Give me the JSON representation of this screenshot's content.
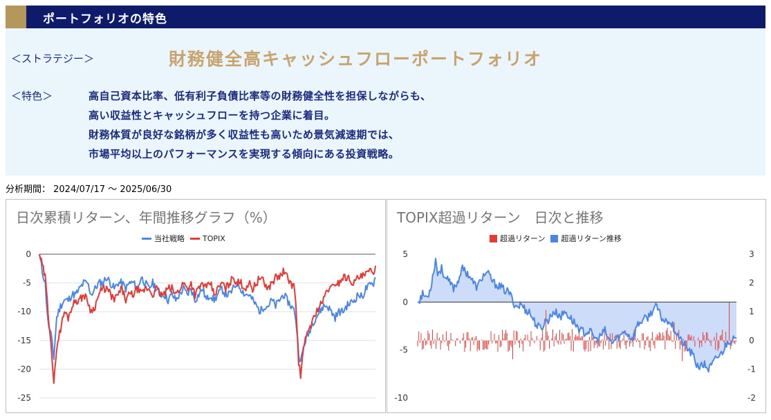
{
  "header": {
    "title": "ポートフォリオの特色",
    "strategy_label": "＜ストラテジー＞",
    "strategy_name": "財務健全高キャッシュフローポートフォリオ",
    "feature_label": "＜特色＞",
    "feature_lines": [
      "高自己資本比率、低有利子負債比率等の財務健全性を担保しながらも、",
      "高い収益性とキャッシュフローを持つ企業に着目。",
      "財務体質が良好な銘柄が多く収益性も高いため景気減速期では、",
      "市場平均以上のパフォーマンスを実現する傾向にある投資戦略。"
    ]
  },
  "period": "分析期間： 2024/07/17 ～ 2025/06/30",
  "colors": {
    "navy": "#0e1b6b",
    "gold": "#c8a46c",
    "blue": "#4a86e8",
    "red": "#e53935"
  },
  "chart_data": [
    {
      "type": "line",
      "title": "日次累積リターン、年間推移グラフ（%）",
      "ylim": [
        -25,
        0
      ],
      "yticks": [
        "0",
        "-5",
        "-10",
        "-15",
        "-20",
        "-25"
      ],
      "series": [
        {
          "name": "当社戦略",
          "color": "#4a86e8",
          "keypoints": [
            [
              0,
              0
            ],
            [
              3,
              -3
            ],
            [
              6,
              -5
            ],
            [
              9,
              -12
            ],
            [
              12,
              -14
            ],
            [
              15,
              -18
            ],
            [
              18,
              -11
            ],
            [
              22,
              -9
            ],
            [
              26,
              -8
            ],
            [
              30,
              -8
            ],
            [
              34,
              -7
            ],
            [
              38,
              -7
            ],
            [
              42,
              -6
            ],
            [
              46,
              -5
            ],
            [
              50,
              -5
            ],
            [
              54,
              -7
            ],
            [
              58,
              -6
            ],
            [
              62,
              -5
            ],
            [
              66,
              -5
            ],
            [
              70,
              -4
            ],
            [
              74,
              -5
            ],
            [
              78,
              -6
            ],
            [
              82,
              -5
            ],
            [
              86,
              -5
            ],
            [
              90,
              -6
            ],
            [
              94,
              -5
            ],
            [
              98,
              -5
            ],
            [
              102,
              -6
            ],
            [
              106,
              -4
            ],
            [
              110,
              -5
            ],
            [
              114,
              -6
            ],
            [
              118,
              -5
            ],
            [
              122,
              -6
            ],
            [
              126,
              -7
            ],
            [
              130,
              -7
            ],
            [
              134,
              -8
            ],
            [
              138,
              -7
            ],
            [
              142,
              -8
            ],
            [
              146,
              -7
            ],
            [
              150,
              -6
            ],
            [
              154,
              -7
            ],
            [
              158,
              -6
            ],
            [
              162,
              -8
            ],
            [
              166,
              -7
            ],
            [
              170,
              -6
            ],
            [
              174,
              -8
            ],
            [
              178,
              -7
            ],
            [
              182,
              -8
            ],
            [
              186,
              -7
            ],
            [
              190,
              -6
            ],
            [
              194,
              -7
            ],
            [
              198,
              -7
            ],
            [
              202,
              -6
            ],
            [
              206,
              -5
            ],
            [
              210,
              -6
            ],
            [
              214,
              -7
            ],
            [
              218,
              -7
            ],
            [
              222,
              -8
            ],
            [
              226,
              -9
            ],
            [
              230,
              -10
            ],
            [
              234,
              -9
            ],
            [
              238,
              -9
            ],
            [
              242,
              -8
            ],
            [
              246,
              -9
            ],
            [
              250,
              -8
            ],
            [
              254,
              -7
            ],
            [
              258,
              -8
            ],
            [
              262,
              -9
            ],
            [
              266,
              -10
            ],
            [
              268,
              -13
            ],
            [
              270,
              -17
            ],
            [
              272,
              -19
            ],
            [
              274,
              -17
            ],
            [
              277,
              -15
            ],
            [
              280,
              -14
            ],
            [
              284,
              -12
            ],
            [
              288,
              -11
            ],
            [
              292,
              -10
            ],
            [
              296,
              -9
            ],
            [
              300,
              -9
            ],
            [
              304,
              -10
            ],
            [
              308,
              -11
            ],
            [
              312,
              -10
            ],
            [
              316,
              -10
            ],
            [
              320,
              -9
            ],
            [
              324,
              -8.5
            ],
            [
              328,
              -8
            ],
            [
              332,
              -7
            ],
            [
              336,
              -7.5
            ],
            [
              340,
              -6
            ],
            [
              344,
              -5.5
            ],
            [
              348,
              -5
            ],
            [
              350,
              -4
            ]
          ]
        },
        {
          "name": "TOPIX",
          "color": "#e53935",
          "keypoints": [
            [
              0,
              0
            ],
            [
              3,
              -2
            ],
            [
              6,
              -4
            ],
            [
              9,
              -10
            ],
            [
              12,
              -15
            ],
            [
              15,
              -23
            ],
            [
              18,
              -16
            ],
            [
              22,
              -13
            ],
            [
              26,
              -10
            ],
            [
              30,
              -11
            ],
            [
              34,
              -9
            ],
            [
              38,
              -8
            ],
            [
              42,
              -8
            ],
            [
              46,
              -7
            ],
            [
              50,
              -8
            ],
            [
              54,
              -10
            ],
            [
              58,
              -9
            ],
            [
              62,
              -7
            ],
            [
              66,
              -6
            ],
            [
              70,
              -6
            ],
            [
              74,
              -7
            ],
            [
              78,
              -8
            ],
            [
              82,
              -7
            ],
            [
              86,
              -6
            ],
            [
              90,
              -8
            ],
            [
              94,
              -7
            ],
            [
              98,
              -7
            ],
            [
              102,
              -6
            ],
            [
              106,
              -7
            ],
            [
              110,
              -6
            ],
            [
              114,
              -6
            ],
            [
              118,
              -7
            ],
            [
              122,
              -6
            ],
            [
              126,
              -7
            ],
            [
              130,
              -7
            ],
            [
              134,
              -6
            ],
            [
              138,
              -6
            ],
            [
              142,
              -7
            ],
            [
              146,
              -6
            ],
            [
              150,
              -5
            ],
            [
              154,
              -6
            ],
            [
              158,
              -5
            ],
            [
              162,
              -7
            ],
            [
              166,
              -6
            ],
            [
              170,
              -5
            ],
            [
              174,
              -6
            ],
            [
              178,
              -5
            ],
            [
              182,
              -7
            ],
            [
              186,
              -6
            ],
            [
              190,
              -5
            ],
            [
              194,
              -6
            ],
            [
              198,
              -5
            ],
            [
              202,
              -4
            ],
            [
              206,
              -5
            ],
            [
              210,
              -5
            ],
            [
              214,
              -6
            ],
            [
              218,
              -5
            ],
            [
              222,
              -6
            ],
            [
              226,
              -5
            ],
            [
              230,
              -4
            ],
            [
              234,
              -5
            ],
            [
              238,
              -6
            ],
            [
              242,
              -5
            ],
            [
              246,
              -4
            ],
            [
              250,
              -4
            ],
            [
              254,
              -3
            ],
            [
              258,
              -4
            ],
            [
              262,
              -5
            ],
            [
              266,
              -6
            ],
            [
              268,
              -12
            ],
            [
              270,
              -19
            ],
            [
              272,
              -21
            ],
            [
              274,
              -18
            ],
            [
              277,
              -15
            ],
            [
              280,
              -13
            ],
            [
              284,
              -12
            ],
            [
              288,
              -10
            ],
            [
              292,
              -9
            ],
            [
              296,
              -8
            ],
            [
              300,
              -6
            ],
            [
              304,
              -6
            ],
            [
              308,
              -5
            ],
            [
              312,
              -5
            ],
            [
              316,
              -4
            ],
            [
              320,
              -4
            ],
            [
              324,
              -4.5
            ],
            [
              328,
              -5
            ],
            [
              332,
              -4
            ],
            [
              336,
              -4
            ],
            [
              340,
              -3.5
            ],
            [
              344,
              -3
            ],
            [
              348,
              -3
            ],
            [
              350,
              -2
            ]
          ]
        }
      ]
    },
    {
      "type": "bar+area",
      "title": "TOPIX超過リターン　日次と推移",
      "y_left": {
        "lim": [
          -10,
          5
        ],
        "ticks": [
          "5",
          "0",
          "-5",
          "-10"
        ]
      },
      "y_right": {
        "lim": [
          -2,
          3
        ],
        "ticks": [
          "3",
          "2",
          "1",
          "0",
          "-1",
          "-2"
        ]
      },
      "series": [
        {
          "name": "超過リターン",
          "color": "#e53935",
          "axis": "right"
        },
        {
          "name": "超過リターン推移",
          "color": "#4a86e8",
          "axis": "left",
          "keypoints": [
            [
              0,
              0
            ],
            [
              5,
              0.8
            ],
            [
              10,
              0.5
            ],
            [
              14,
              2
            ],
            [
              18,
              4.5
            ],
            [
              20,
              3
            ],
            [
              24,
              3.5
            ],
            [
              28,
              2.5
            ],
            [
              32,
              2
            ],
            [
              36,
              1.5
            ],
            [
              40,
              2
            ],
            [
              44,
              3.5
            ],
            [
              48,
              3.2
            ],
            [
              52,
              2.8
            ],
            [
              56,
              2
            ],
            [
              60,
              1.5
            ],
            [
              64,
              2.5
            ],
            [
              68,
              3
            ],
            [
              72,
              2.8
            ],
            [
              76,
              2
            ],
            [
              80,
              1.8
            ],
            [
              84,
              1.5
            ],
            [
              88,
              1.2
            ],
            [
              92,
              1
            ],
            [
              96,
              0
            ],
            [
              100,
              -0.5
            ],
            [
              104,
              -0.2
            ],
            [
              108,
              -0.8
            ],
            [
              112,
              -1
            ],
            [
              116,
              -1.8
            ],
            [
              120,
              -2.5
            ],
            [
              124,
              -2.8
            ],
            [
              128,
              -2
            ],
            [
              132,
              -1.8
            ],
            [
              136,
              -1
            ],
            [
              140,
              -1.2
            ],
            [
              144,
              -1.5
            ],
            [
              148,
              -1
            ],
            [
              152,
              -1.5
            ],
            [
              156,
              -2
            ],
            [
              160,
              -2.5
            ],
            [
              164,
              -3
            ],
            [
              168,
              -3.2
            ],
            [
              172,
              -3
            ],
            [
              176,
              -3.5
            ],
            [
              180,
              -4
            ],
            [
              184,
              -3.5
            ],
            [
              188,
              -3
            ],
            [
              192,
              -4
            ],
            [
              196,
              -4.2
            ],
            [
              200,
              -3.8
            ],
            [
              204,
              -3.5
            ],
            [
              208,
              -3
            ],
            [
              212,
              -3.5
            ],
            [
              216,
              -3.8
            ],
            [
              220,
              -2.5
            ],
            [
              224,
              -2
            ],
            [
              228,
              -1.8
            ],
            [
              232,
              -1.5
            ],
            [
              236,
              -0.8
            ],
            [
              240,
              -0.5
            ],
            [
              244,
              -1.5
            ],
            [
              248,
              -2
            ],
            [
              252,
              -1.8
            ],
            [
              256,
              -2.5
            ],
            [
              260,
              -3.2
            ],
            [
              264,
              -4
            ],
            [
              268,
              -4.5
            ],
            [
              272,
              -5
            ],
            [
              276,
              -5.5
            ],
            [
              280,
              -6.5
            ],
            [
              284,
              -6.8
            ],
            [
              288,
              -6.5
            ],
            [
              292,
              -7
            ],
            [
              296,
              -6.5
            ],
            [
              300,
              -5.8
            ],
            [
              304,
              -5.5
            ],
            [
              308,
              -4.8
            ],
            [
              312,
              -4
            ],
            [
              316,
              -4
            ],
            [
              320,
              -3.8
            ]
          ]
        }
      ]
    }
  ]
}
